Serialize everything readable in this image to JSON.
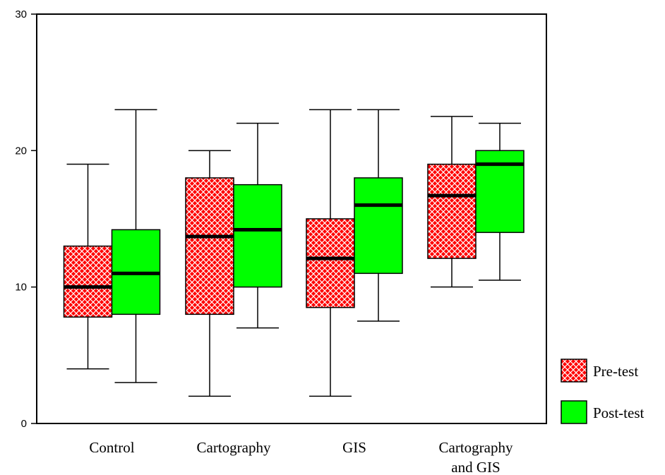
{
  "chart_data": {
    "type": "boxplot",
    "categories": [
      [
        "Control"
      ],
      [
        "Cartography"
      ],
      [
        "GIS"
      ],
      [
        "Cartography",
        "and GIS"
      ]
    ],
    "series": [
      {
        "name": "Pre-test",
        "color": "#ff0000",
        "pattern": "white-crosshatch",
        "boxes": [
          {
            "min": 4,
            "q1": 7.8,
            "median": 10,
            "q3": 13,
            "max": 19
          },
          {
            "min": 2,
            "q1": 8,
            "median": 13.7,
            "q3": 18,
            "max": 20
          },
          {
            "min": 2,
            "q1": 8.5,
            "median": 12.1,
            "q3": 15,
            "max": 23
          },
          {
            "min": 10,
            "q1": 12.1,
            "median": 16.7,
            "q3": 19,
            "max": 22.5
          }
        ]
      },
      {
        "name": "Post-test",
        "color": "#00ff00",
        "boxes": [
          {
            "min": 3,
            "q1": 8,
            "median": 11,
            "q3": 14.2,
            "max": 23
          },
          {
            "min": 7,
            "q1": 10,
            "median": 14.2,
            "q3": 17.5,
            "max": 22
          },
          {
            "min": 7.5,
            "q1": 11,
            "median": 16,
            "q3": 18,
            "max": 23
          },
          {
            "min": 10.5,
            "q1": 14,
            "median": 19,
            "q3": 20,
            "max": 22
          }
        ]
      }
    ],
    "ylim": [
      0,
      30
    ],
    "yticks": [
      "0",
      "10",
      "20",
      "30"
    ],
    "title": "",
    "xlabel": "",
    "ylabel": "",
    "grid": false,
    "legend_position": "right-bottom"
  }
}
